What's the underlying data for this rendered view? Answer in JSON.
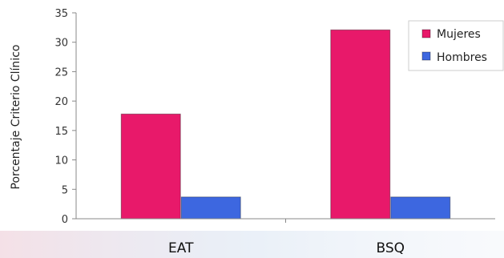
{
  "chart_data": {
    "type": "bar",
    "title": "",
    "xlabel": "",
    "ylabel": "Porcentaje Criterio Clínico",
    "categories": [
      "EAT",
      "BSQ"
    ],
    "series": [
      {
        "name": "Mujeres",
        "values": [
          17.8,
          32.1
        ],
        "color": "#e8196a"
      },
      {
        "name": "Hombres",
        "values": [
          3.7,
          3.7
        ],
        "color": "#3d67e0"
      }
    ],
    "ylim": [
      0,
      35
    ],
    "yticks": [
      0,
      5,
      10,
      15,
      20,
      25,
      30,
      35
    ],
    "grid": false,
    "legend": "top-right"
  }
}
